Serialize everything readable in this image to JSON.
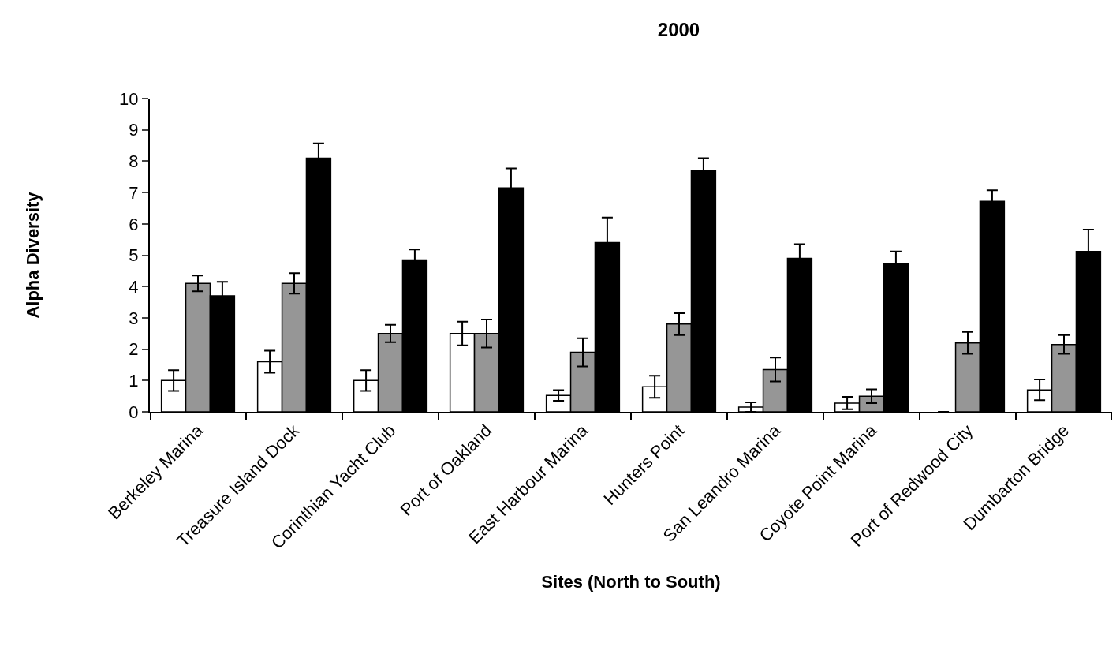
{
  "chart_data": {
    "type": "bar",
    "title": "2000",
    "xlabel": "Sites (North to South)",
    "ylabel": "Alpha Diversity",
    "categories": [
      "Berkeley Marina",
      "Treasure Island Dock",
      "Corinthian Yacht Club",
      "Port of Oakland",
      "East Harbour Marina",
      "Hunters Point",
      "San Leandro Marina",
      "Coyote Point Marina",
      "Port of Redwood City",
      "Dumbarton Bridge"
    ],
    "series": [
      {
        "color": "#ffffff",
        "values": [
          1.0,
          1.6,
          1.0,
          2.5,
          0.52,
          0.8,
          0.15,
          0.28,
          0,
          0.7
        ],
        "errors": [
          0.33,
          0.35,
          0.33,
          0.38,
          0.17,
          0.35,
          0.15,
          0.2,
          null,
          0.33
        ]
      },
      {
        "color": "#969696",
        "values": [
          4.1,
          4.1,
          2.5,
          2.5,
          1.9,
          2.8,
          1.35,
          0.5,
          2.2,
          2.15
        ],
        "errors": [
          0.25,
          0.33,
          0.28,
          0.45,
          0.45,
          0.35,
          0.38,
          0.22,
          0.35,
          0.3
        ]
      },
      {
        "color": "#000000",
        "values": [
          3.7,
          8.1,
          4.85,
          7.15,
          5.4,
          7.7,
          4.9,
          4.72,
          6.72,
          5.12
        ],
        "errors": [
          0.45,
          0.47,
          0.33,
          0.62,
          0.8,
          0.4,
          0.45,
          0.4,
          0.35,
          0.7
        ]
      }
    ],
    "ylim": [
      0,
      10
    ],
    "yticks": [
      0,
      1,
      2,
      3,
      4,
      5,
      6,
      7,
      8,
      9,
      10
    ],
    "grid": false
  }
}
